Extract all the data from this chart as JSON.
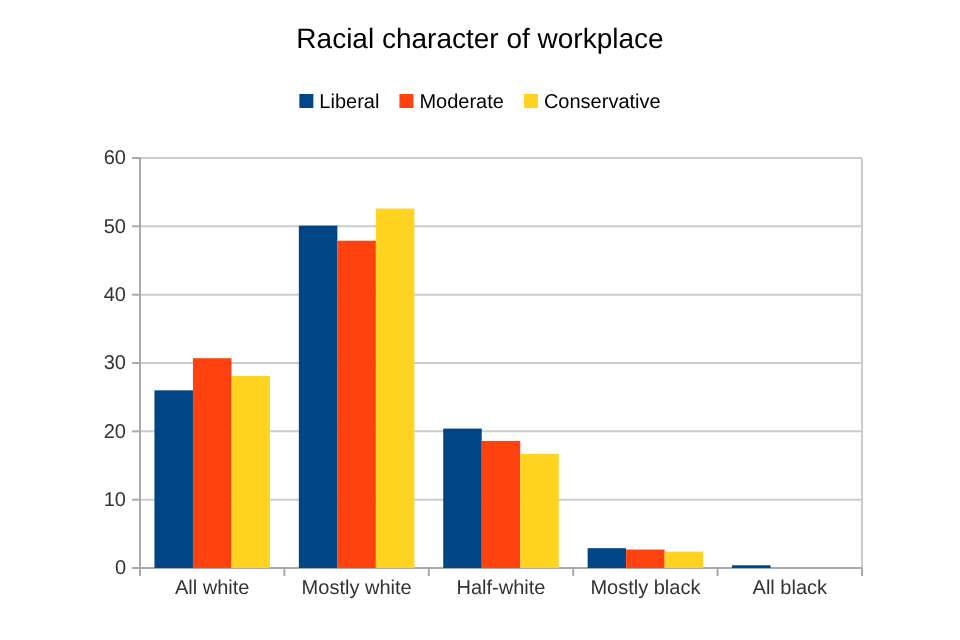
{
  "chart_data": {
    "type": "bar",
    "title": "Racial character of workplace",
    "categories": [
      "All white",
      "Mostly white",
      "Half-white",
      "Mostly black",
      "All black"
    ],
    "series": [
      {
        "name": "Liberal",
        "color": "#004586",
        "values": [
          26.0,
          50.1,
          20.4,
          2.9,
          0.4
        ]
      },
      {
        "name": "Moderate",
        "color": "#ff420e",
        "values": [
          30.7,
          47.9,
          18.6,
          2.7,
          0
        ]
      },
      {
        "name": "Conservative",
        "color": "#ffd320",
        "values": [
          28.1,
          52.6,
          16.7,
          2.4,
          0
        ]
      }
    ],
    "ylim": [
      0,
      60
    ],
    "yticks": [
      0,
      10,
      20,
      30,
      40,
      50,
      60
    ],
    "grid": "y",
    "legend": "top"
  }
}
